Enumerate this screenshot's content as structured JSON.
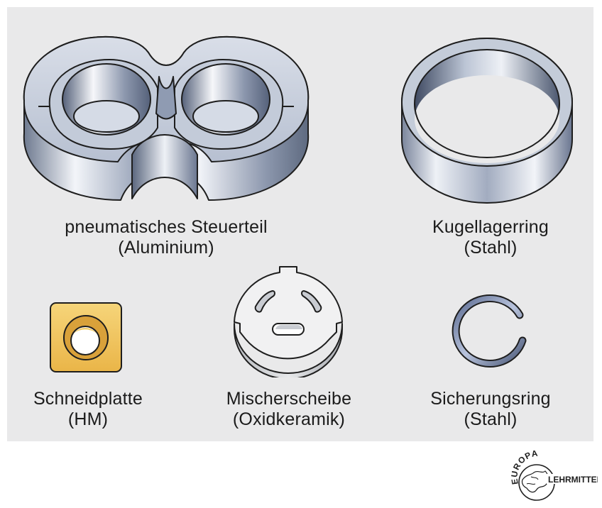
{
  "parts": [
    {
      "id": "pneumatic-control-part",
      "name": "pneumatisches Steuerteil",
      "material": "(Aluminium)"
    },
    {
      "id": "ball-bearing-ring",
      "name": "Kugellagerring",
      "material": "(Stahl)"
    },
    {
      "id": "cutting-insert",
      "name": "Schneidplatte",
      "material": "(HM)"
    },
    {
      "id": "mixer-disc",
      "name": "Mischerscheibe",
      "material": "(Oxidkeramik)"
    },
    {
      "id": "retaining-ring",
      "name": "Sicherungsring",
      "material": "(Stahl)"
    }
  ],
  "logo": {
    "top": "EUROPA",
    "bottom": "LEHRMITTEL"
  },
  "colors": {
    "panel": "#e9e9ea",
    "aluminium": "#b9c2d3",
    "steel": "#a4aec4",
    "carbide": "#f1c45c",
    "ceramic": "#efefef"
  }
}
